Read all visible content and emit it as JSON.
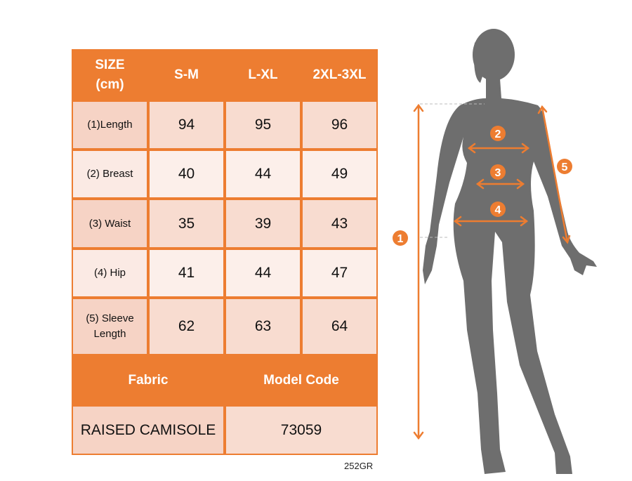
{
  "table": {
    "header": {
      "size_label": "SIZE\n(cm)",
      "sizes": [
        "S-M",
        "L-XL",
        "2XL-3XL"
      ]
    },
    "rows": [
      {
        "label": "(1)Length",
        "values": [
          "94",
          "95",
          "96"
        ]
      },
      {
        "label": "(2) Breast",
        "values": [
          "40",
          "44",
          "49"
        ]
      },
      {
        "label": "(3) Waist",
        "values": [
          "35",
          "39",
          "43"
        ]
      },
      {
        "label": "(4) Hip",
        "values": [
          "41",
          "44",
          "47"
        ]
      },
      {
        "label": "(5) Sleeve\nLength",
        "values": [
          "62",
          "63",
          "64"
        ]
      }
    ],
    "fabric_label": "Fabric",
    "model_code_label": "Model Code",
    "fabric_value": "RAISED CAMISOLE",
    "model_code_value": "73059"
  },
  "footer_code": "252GR",
  "figure": {
    "markers": [
      "1",
      "2",
      "3",
      "4",
      "5"
    ]
  },
  "colors": {
    "accent": "#ED7D31",
    "row_dark": "#F6D3C5",
    "row_light": "#FBEAE4",
    "silhouette": "#6E6E6E"
  }
}
